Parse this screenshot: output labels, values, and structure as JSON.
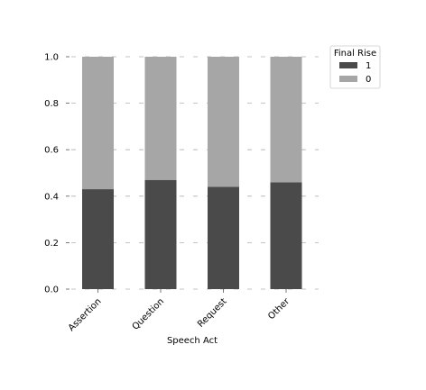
{
  "chart_data": {
    "type": "bar",
    "stacked": true,
    "categories": [
      "Assertion",
      "Question",
      "Request",
      "Other"
    ],
    "series": [
      {
        "name": "1",
        "values": [
          0.43,
          0.47,
          0.44,
          0.46
        ],
        "color": "#4a4a4a"
      },
      {
        "name": "0",
        "values": [
          0.57,
          0.53,
          0.56,
          0.54
        ],
        "color": "#a6a6a6"
      }
    ],
    "xlabel": "Speech Act",
    "ylabel": "",
    "ylim": [
      0,
      1.0
    ],
    "yticks": [
      "0.0",
      "0.2",
      "0.4",
      "0.6",
      "0.8",
      "1.0"
    ],
    "ytick_values": [
      0,
      0.2,
      0.4,
      0.6,
      0.8,
      1.0
    ],
    "grid": "y-dashed",
    "legend": {
      "title": "Final Rise",
      "placement": "top-right-outside"
    }
  }
}
